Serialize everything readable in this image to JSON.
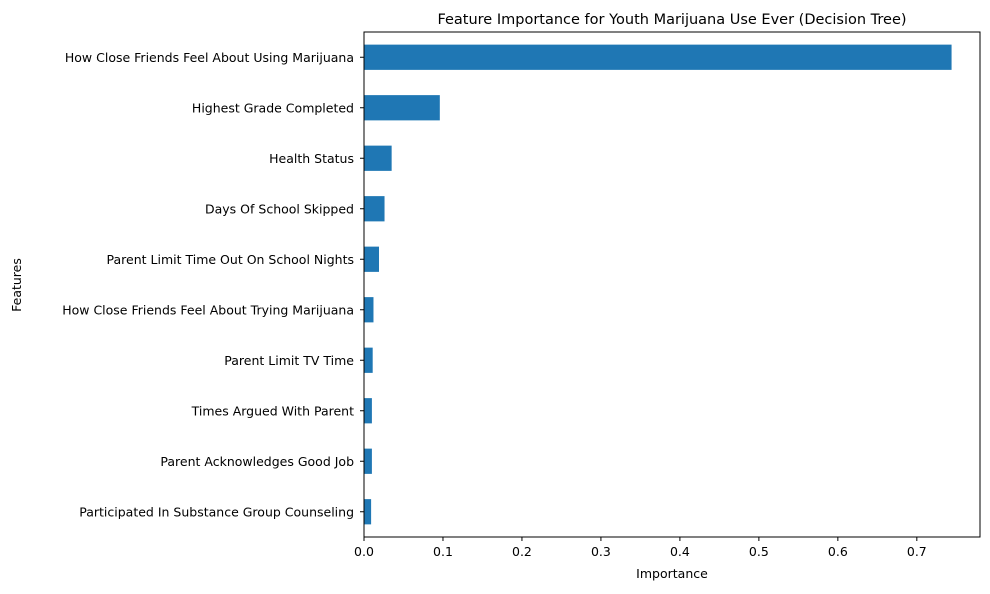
{
  "chart_data": {
    "type": "bar",
    "orientation": "horizontal",
    "title": "Feature Importance for Youth Marijuana Use Ever (Decision Tree)",
    "xlabel": "Importance",
    "ylabel": "Features",
    "categories": [
      "How Close Friends Feel About Using Marijuana",
      "Highest Grade Completed",
      "Health Status",
      "Days Of School Skipped",
      "Parent Limit Time Out On School Nights",
      "How Close Friends Feel About Trying Marijuana",
      "Parent Limit TV Time",
      "Times Argued With Parent",
      "Parent Acknowledges Good Job",
      "Participated In Substance Group Counseling"
    ],
    "values": [
      0.744,
      0.096,
      0.035,
      0.026,
      0.019,
      0.012,
      0.011,
      0.01,
      0.01,
      0.009
    ],
    "xlim": [
      0,
      0.78
    ],
    "xticks": [
      0,
      0.1,
      0.2,
      0.3,
      0.4,
      0.5,
      0.6,
      0.7
    ],
    "xtick_labels": [
      "0.0",
      "0.1",
      "0.2",
      "0.3",
      "0.4",
      "0.5",
      "0.6",
      "0.7"
    ],
    "bar_color": "#1f77b4",
    "grid": false,
    "legend": "none"
  }
}
